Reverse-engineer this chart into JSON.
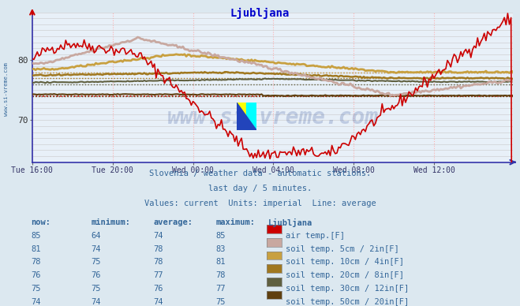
{
  "title": "Ljubljana",
  "subtitle1": "Slovenia / weather data - automatic stations.",
  "subtitle2": "last day / 5 minutes.",
  "subtitle3": "Values: current  Units: imperial  Line: average",
  "watermark": "www.si-vreme.com",
  "xlabel_ticks": [
    "Tue 16:00",
    "Tue 20:00",
    "Wed 00:00",
    "Wed 04:00",
    "Wed 08:00",
    "Wed 12:00"
  ],
  "ylim": [
    63,
    88
  ],
  "yticks": [
    70,
    80
  ],
  "background_color": "#dce8f0",
  "plot_bg": "#e8f0f8",
  "grid_color_h": "#c8c8c8",
  "grid_color_v": "#ffb0b0",
  "title_color": "#0000cc",
  "text_color": "#336699",
  "axis_color": "#3333aa",
  "series": {
    "air_temp": {
      "color": "#cc0000",
      "now": 85,
      "min": 64,
      "avg": 74,
      "max": 85,
      "label": "air temp.[F]"
    },
    "soil_5cm": {
      "color": "#c8a8a0",
      "now": 81,
      "min": 74,
      "avg": 78,
      "max": 83,
      "label": "soil temp. 5cm / 2in[F]"
    },
    "soil_10cm": {
      "color": "#c8a040",
      "now": 78,
      "min": 75,
      "avg": 78,
      "max": 81,
      "label": "soil temp. 10cm / 4in[F]"
    },
    "soil_20cm": {
      "color": "#a07820",
      "now": 76,
      "min": 76,
      "avg": 77,
      "max": 78,
      "label": "soil temp. 20cm / 8in[F]"
    },
    "soil_30cm": {
      "color": "#606040",
      "now": 75,
      "min": 75,
      "avg": 76,
      "max": 77,
      "label": "soil temp. 30cm / 12in[F]"
    },
    "soil_50cm": {
      "color": "#604010",
      "now": 74,
      "min": 74,
      "avg": 74,
      "max": 75,
      "label": "soil temp. 50cm / 20in[F]"
    }
  },
  "n_points": 288,
  "legend_rows": [
    {
      "key": "air_temp",
      "now": 85,
      "min": 64,
      "avg": 74,
      "max": 85,
      "label": "air temp.[F]"
    },
    {
      "key": "soil_5cm",
      "now": 81,
      "min": 74,
      "avg": 78,
      "max": 83,
      "label": "soil temp. 5cm / 2in[F]"
    },
    {
      "key": "soil_10cm",
      "now": 78,
      "min": 75,
      "avg": 78,
      "max": 81,
      "label": "soil temp. 10cm / 4in[F]"
    },
    {
      "key": "soil_20cm",
      "now": 76,
      "min": 76,
      "avg": 77,
      "max": 78,
      "label": "soil temp. 20cm / 8in[F]"
    },
    {
      "key": "soil_30cm",
      "now": 75,
      "min": 75,
      "avg": 76,
      "max": 77,
      "label": "soil temp. 30cm / 12in[F]"
    },
    {
      "key": "soil_50cm",
      "now": 74,
      "min": 74,
      "avg": 74,
      "max": 75,
      "label": "soil temp. 50cm / 20in[F]"
    }
  ]
}
